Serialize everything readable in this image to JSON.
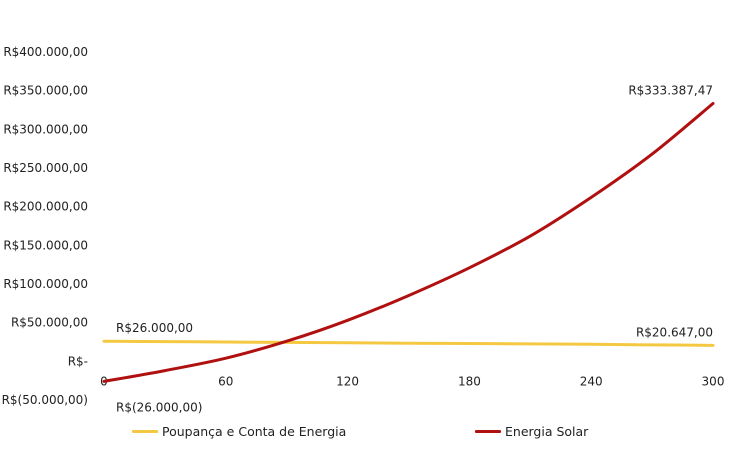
{
  "chart_data": {
    "type": "line",
    "title": "",
    "xlabel": "",
    "ylabel": "",
    "xlim": [
      0,
      300
    ],
    "ylim": [
      -50000,
      400000
    ],
    "x_ticks": [
      "0",
      "60",
      "120",
      "180",
      "240",
      "300"
    ],
    "y_ticks": [
      "R$(50.000,00)",
      "R$-",
      "R$50.000,00",
      "R$100.000,00",
      "R$150.000,00",
      "R$200.000,00",
      "R$250.000,00",
      "R$300.000,00",
      "R$350.000,00",
      "R$400.000,00"
    ],
    "grid": false,
    "legend_position": "bottom",
    "x": [
      0,
      30,
      60,
      90,
      120,
      150,
      180,
      210,
      240,
      270,
      300
    ],
    "series": [
      {
        "name": "Poupança e Conta de Energia",
        "color": "#F5C842",
        "values": [
          26000,
          25500,
          25000,
          24500,
          24000,
          23500,
          23000,
          22500,
          22000,
          21300,
          20647
        ]
      },
      {
        "name": "Energia Solar",
        "color": "#B01010",
        "values": [
          -26000,
          -12000,
          4000,
          26000,
          53000,
          85000,
          121000,
          162000,
          212000,
          268000,
          333387.47
        ]
      }
    ],
    "annotations": [
      {
        "text": "R$26.000,00",
        "series": 0,
        "point": "start",
        "side": "above"
      },
      {
        "text": "R$20.647,00",
        "series": 0,
        "point": "end",
        "side": "above"
      },
      {
        "text": "R$333.387,47",
        "series": 1,
        "point": "end",
        "side": "above"
      },
      {
        "text": "R$(26.000,00)",
        "series": 1,
        "point": "start",
        "side": "below"
      }
    ]
  }
}
